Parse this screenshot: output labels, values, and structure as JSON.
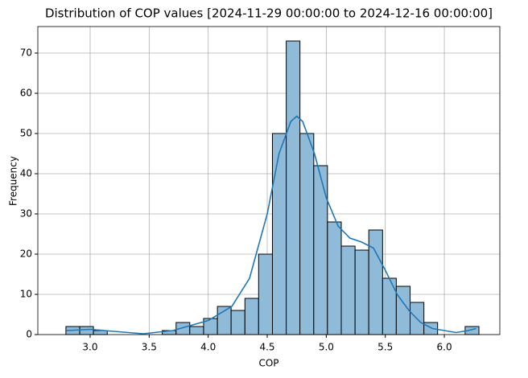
{
  "chart_data": {
    "type": "histogram",
    "title": "Distribution of COP values [2024-11-29 00:00:00 to 2024-12-16 00:00:00]",
    "x_label": "COP",
    "y_label": "Frequency",
    "bins": [
      2.795,
      2.912,
      3.028,
      3.145,
      3.261,
      3.378,
      3.495,
      3.611,
      3.728,
      3.844,
      3.961,
      4.078,
      4.194,
      4.311,
      4.427,
      4.544,
      4.661,
      4.777,
      4.894,
      5.01,
      5.127,
      5.244,
      5.36,
      5.477,
      5.593,
      5.71,
      5.827,
      5.943,
      6.06,
      6.176,
      6.293
    ],
    "values": [
      2,
      2,
      1,
      0,
      0,
      0,
      0,
      1,
      3,
      2,
      4,
      7,
      6,
      9,
      20,
      50,
      73,
      50,
      42,
      28,
      22,
      21,
      26,
      14,
      12,
      8,
      3,
      0,
      0,
      2
    ],
    "color": "#8fbbd9",
    "edge_color": "#000000",
    "kde": {
      "color": "#1f77b4",
      "x": [
        2.8,
        3.0,
        3.2,
        3.45,
        3.7,
        4.0,
        4.2,
        4.35,
        4.5,
        4.6,
        4.7,
        4.75,
        4.8,
        4.9,
        5.0,
        5.1,
        5.2,
        5.3,
        5.4,
        5.5,
        5.6,
        5.7,
        5.8,
        5.9,
        6.0,
        6.1,
        6.2,
        6.27
      ],
      "values": [
        1,
        1.3,
        0.8,
        0.2,
        1,
        3.5,
        7,
        14,
        30,
        45,
        53,
        54.3,
        53,
        45,
        34,
        27,
        24,
        23,
        21.5,
        16,
        10,
        6,
        3,
        1.5,
        1,
        0.5,
        1,
        1.5
      ]
    },
    "xlim": [
      2.557,
      6.47
    ],
    "ylim": [
      0,
      76.6
    ],
    "xticks": [
      {
        "value": 3,
        "label": "3.0"
      },
      3.5,
      {
        "value": 4,
        "label": "4.0"
      },
      4.5,
      {
        "value": 5,
        "label": "5.0"
      },
      5.5,
      {
        "value": 6,
        "label": "6.0"
      }
    ],
    "yticks": [
      0,
      10,
      20,
      30,
      40,
      50,
      60,
      70
    ],
    "grid": true
  }
}
